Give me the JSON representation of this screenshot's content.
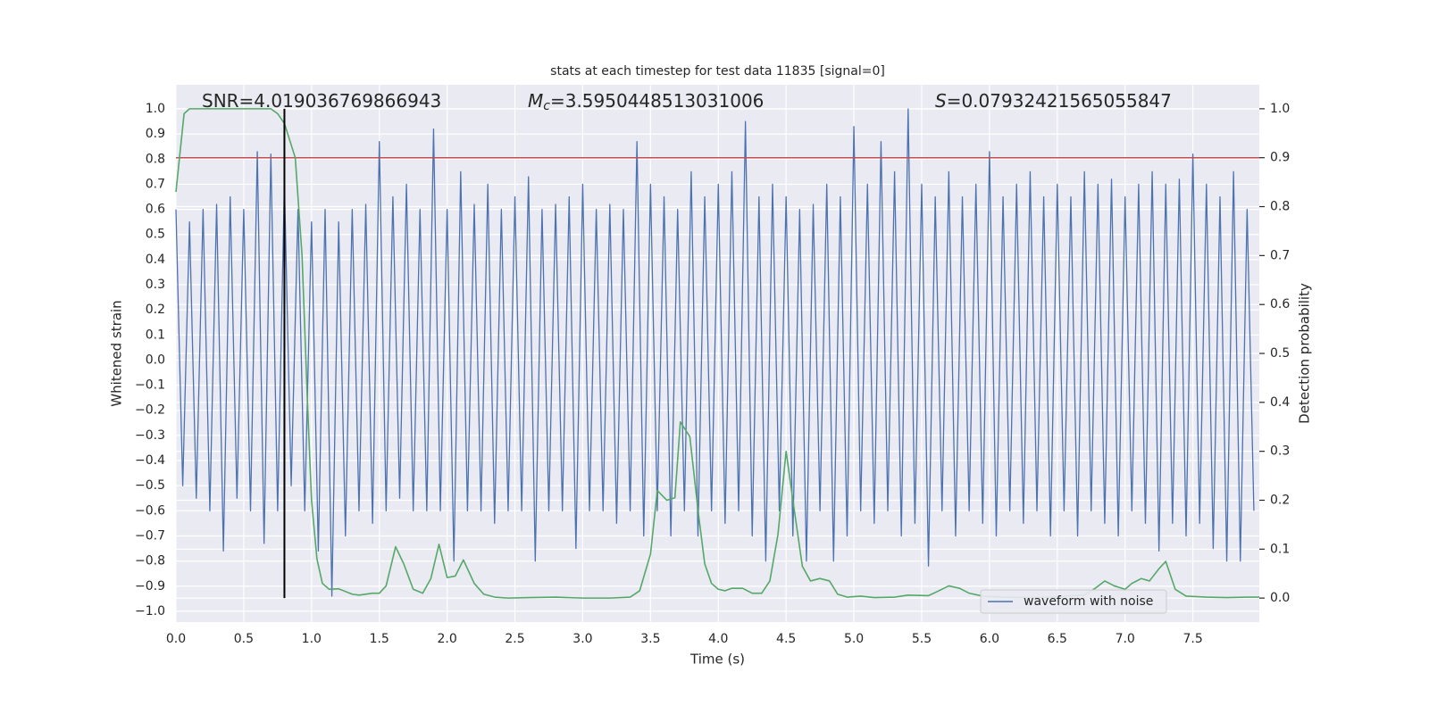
{
  "chart_data": {
    "type": "line",
    "title": "stats at each timestep for test data 11835 [signal=0]",
    "x_label": "Time (s)",
    "y_label": "Whitened strain",
    "y2_label": "Detection probability",
    "annotations": [
      {
        "text": "SNR=4.019036769866943"
      },
      {
        "symbol": "M",
        "subscript": "c",
        "text": "=3.5950448513031006"
      },
      {
        "symbol": "S",
        "text": "=0.07932421565055847"
      }
    ],
    "xlim": [
      0,
      7.99
    ],
    "ylim": [
      -1.043,
      1.096
    ],
    "y2lim": [
      -0.049,
      1.049
    ],
    "xticks": [
      {
        "value": 0,
        "label": "0.0"
      },
      0.5,
      {
        "value": 1,
        "label": "1.0"
      },
      1.5,
      {
        "value": 2,
        "label": "2.0"
      },
      2.5,
      {
        "value": 3,
        "label": "3.0"
      },
      3.5,
      {
        "value": 4,
        "label": "4.0"
      },
      4.5,
      {
        "value": 5,
        "label": "5.0"
      },
      5.5,
      {
        "value": 6,
        "label": "6.0"
      },
      6.5,
      {
        "value": 7,
        "label": "7.0"
      },
      7.5
    ],
    "yticks": [
      {
        "value": -1,
        "label": "−1.0"
      },
      {
        "value": -0.9,
        "label": "−0.9"
      },
      {
        "value": -0.8,
        "label": "−0.8"
      },
      {
        "value": -0.7,
        "label": "−0.7"
      },
      {
        "value": -0.6,
        "label": "−0.6"
      },
      {
        "value": -0.5,
        "label": "−0.5"
      },
      {
        "value": -0.4,
        "label": "−0.4"
      },
      {
        "value": -0.3,
        "label": "−0.3"
      },
      {
        "value": -0.2,
        "label": "−0.2"
      },
      {
        "value": -0.1,
        "label": "−0.1"
      },
      {
        "value": 0,
        "label": "0.0"
      },
      0.1,
      0.2,
      0.3,
      0.4,
      0.5,
      0.6,
      0.7,
      0.8,
      0.9,
      {
        "value": 1,
        "label": "1.0"
      }
    ],
    "y2ticks": [
      {
        "value": 0,
        "label": "0.0"
      },
      0.1,
      0.2,
      0.3,
      0.4,
      0.5,
      0.6,
      0.7,
      0.8,
      0.9,
      {
        "value": 1,
        "label": "1.0"
      }
    ],
    "grid": true,
    "legend": "lower right",
    "series": [
      {
        "name": "waveform with noise",
        "color": "#4c72b0",
        "x": [
          0,
          0.05,
          0.1,
          0.15,
          0.2,
          0.25,
          0.3,
          0.35,
          0.4,
          0.45,
          0.5,
          0.55,
          0.6,
          0.65,
          0.7,
          0.75,
          0.8,
          0.85,
          0.9,
          0.95,
          1,
          1.05,
          1.1,
          1.15,
          1.2,
          1.25,
          1.3,
          1.35,
          1.4,
          1.45,
          1.5,
          1.55,
          1.6,
          1.65,
          1.7,
          1.75,
          1.8,
          1.85,
          1.9,
          1.95,
          2,
          2.05,
          2.1,
          2.15,
          2.2,
          2.25,
          2.3,
          2.35,
          2.4,
          2.45,
          2.5,
          2.55,
          2.6,
          2.65,
          2.7,
          2.75,
          2.8,
          2.85,
          2.9,
          2.95,
          3,
          3.05,
          3.1,
          3.15,
          3.2,
          3.25,
          3.3,
          3.35,
          3.4,
          3.45,
          3.5,
          3.55,
          3.6,
          3.65,
          3.7,
          3.75,
          3.8,
          3.85,
          3.9,
          3.95,
          4,
          4.05,
          4.1,
          4.15,
          4.2,
          4.25,
          4.3,
          4.35,
          4.4,
          4.45,
          4.5,
          4.55,
          4.6,
          4.65,
          4.7,
          4.75,
          4.8,
          4.85,
          4.9,
          4.95,
          5,
          5.05,
          5.1,
          5.15,
          5.2,
          5.25,
          5.3,
          5.35,
          5.4,
          5.45,
          5.5,
          5.55,
          5.6,
          5.65,
          5.7,
          5.75,
          5.8,
          5.85,
          5.9,
          5.95,
          6,
          6.05,
          6.1,
          6.15,
          6.2,
          6.25,
          6.3,
          6.35,
          6.4,
          6.45,
          6.5,
          6.55,
          6.6,
          6.65,
          6.7,
          6.75,
          6.8,
          6.85,
          6.9,
          6.95,
          7,
          7.05,
          7.1,
          7.15,
          7.2,
          7.25,
          7.3,
          7.35,
          7.4,
          7.45,
          7.5,
          7.55,
          7.6,
          7.65,
          7.7,
          7.75,
          7.8,
          7.85,
          7.9,
          7.95
        ],
        "values": [
          0.6,
          -0.5,
          0.55,
          -0.55,
          0.6,
          -0.6,
          0.62,
          -0.76,
          0.65,
          -0.55,
          0.6,
          -0.6,
          0.83,
          -0.73,
          0.82,
          -0.6,
          0.7,
          -0.5,
          0.6,
          -0.6,
          0.55,
          -0.76,
          0.6,
          -0.94,
          0.55,
          -0.7,
          0.6,
          -0.6,
          0.62,
          -0.65,
          0.87,
          -0.6,
          0.65,
          -0.55,
          0.7,
          -0.6,
          0.6,
          -0.6,
          0.92,
          -0.6,
          0.6,
          -0.8,
          0.75,
          -0.6,
          0.62,
          -0.6,
          0.7,
          -0.65,
          0.6,
          -0.6,
          0.65,
          -0.6,
          0.73,
          -0.8,
          0.6,
          -0.6,
          0.62,
          -0.6,
          0.65,
          -0.75,
          0.7,
          -0.6,
          0.6,
          -0.6,
          0.62,
          -0.65,
          0.6,
          -0.6,
          0.87,
          -0.7,
          0.7,
          -0.6,
          0.65,
          -0.7,
          0.6,
          -0.6,
          0.75,
          -0.7,
          0.65,
          -0.6,
          0.7,
          -0.65,
          0.75,
          -0.6,
          0.95,
          -0.7,
          0.65,
          -0.8,
          0.7,
          -0.6,
          0.65,
          -0.7,
          0.6,
          -0.8,
          0.62,
          -0.6,
          0.7,
          -0.8,
          0.65,
          -0.7,
          0.93,
          -0.6,
          0.7,
          -0.65,
          0.87,
          -0.6,
          0.75,
          -0.7,
          1.0,
          -0.65,
          0.7,
          -0.82,
          0.65,
          -0.6,
          0.75,
          -0.7,
          0.65,
          -0.6,
          0.7,
          -0.65,
          0.83,
          -0.7,
          0.65,
          -0.6,
          0.7,
          -0.65,
          0.75,
          -0.6,
          0.65,
          -0.7,
          0.7,
          -0.6,
          0.65,
          -0.7,
          0.75,
          -0.6,
          0.7,
          -0.65,
          0.72,
          -0.7,
          0.65,
          -0.6,
          0.7,
          -0.65,
          0.75,
          -0.76,
          0.7,
          -0.65,
          0.72,
          -0.7,
          0.82,
          -0.65,
          0.7,
          -0.75,
          0.65,
          -0.8,
          0.75,
          -0.8,
          0.6,
          -0.6
        ]
      },
      {
        "color": "#55a868",
        "axis": "y2",
        "x": [
          0,
          0.06,
          0.1,
          0.7,
          0.75,
          0.8,
          0.88,
          0.93,
          0.97,
          1,
          1.04,
          1.08,
          1.13,
          1.2,
          1.3,
          1.35,
          1.45,
          1.5,
          1.55,
          1.62,
          1.68,
          1.75,
          1.82,
          1.88,
          1.94,
          2,
          2.06,
          2.12,
          2.2,
          2.27,
          2.35,
          2.45,
          2.6,
          2.8,
          3,
          3.2,
          3.35,
          3.42,
          3.5,
          3.55,
          3.62,
          3.68,
          3.72,
          3.79,
          3.85,
          3.9,
          3.95,
          4,
          4.05,
          4.1,
          4.18,
          4.25,
          4.32,
          4.38,
          4.44,
          4.5,
          4.55,
          4.62,
          4.68,
          4.75,
          4.82,
          4.88,
          4.95,
          5.05,
          5.15,
          5.3,
          5.4,
          5.55,
          5.62,
          5.7,
          5.78,
          5.85,
          5.95,
          6.1,
          6.3,
          6.5,
          6.6,
          6.7,
          6.78,
          6.85,
          6.92,
          7,
          7.05,
          7.12,
          7.18,
          7.25,
          7.3,
          7.37,
          7.45,
          7.6,
          7.75,
          7.9,
          7.99
        ],
        "values": [
          0.83,
          0.99,
          1.0,
          1.0,
          0.99,
          0.97,
          0.9,
          0.7,
          0.4,
          0.2,
          0.08,
          0.03,
          0.018,
          0.019,
          0.008,
          0.006,
          0.01,
          0.01,
          0.025,
          0.105,
          0.07,
          0.018,
          0.01,
          0.04,
          0.11,
          0.042,
          0.045,
          0.078,
          0.03,
          0.008,
          0.002,
          0.0,
          0.001,
          0.002,
          0.0,
          0.0,
          0.002,
          0.015,
          0.09,
          0.22,
          0.2,
          0.205,
          0.36,
          0.33,
          0.18,
          0.07,
          0.03,
          0.018,
          0.015,
          0.02,
          0.02,
          0.01,
          0.01,
          0.035,
          0.13,
          0.3,
          0.2,
          0.065,
          0.035,
          0.04,
          0.035,
          0.008,
          0.002,
          0.004,
          0.001,
          0.002,
          0.006,
          0.005,
          0.014,
          0.025,
          0.02,
          0.01,
          0.004,
          0.002,
          0.001,
          0.002,
          0.005,
          0.006,
          0.02,
          0.035,
          0.025,
          0.018,
          0.03,
          0.04,
          0.035,
          0.06,
          0.075,
          0.018,
          0.004,
          0.002,
          0.001,
          0.002,
          0.002
        ]
      }
    ],
    "hlines": [
      {
        "y": 0.9,
        "axis": "y2",
        "color": "#c44e52"
      }
    ],
    "vlines": [
      {
        "x": 0.8,
        "ymin": 0,
        "ymax": 1,
        "axis": "y2",
        "color": "#000000"
      }
    ]
  }
}
